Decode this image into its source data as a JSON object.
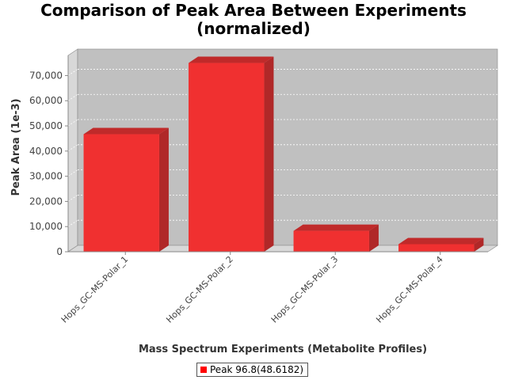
{
  "chart_data": {
    "type": "bar",
    "title": [
      "Comparison of Peak Area Between Experiments",
      "(normalized)"
    ],
    "xlabel": "Mass Spectrum Experiments (Metabolite Profiles)",
    "ylabel": "Peak Area (1e-3)",
    "categories": [
      "Hops_GC-MS-Polar_1",
      "Hops_GC-MS-Polar_2",
      "Hops_GC-MS-Polar_3",
      "Hops_GC-MS-Polar_4"
    ],
    "series": [
      {
        "name": "Peak 96.8(48.6182)",
        "values": [
          46700,
          75000,
          8300,
          3000
        ]
      }
    ],
    "yticks": [
      0,
      10000,
      20000,
      30000,
      40000,
      50000,
      60000,
      70000
    ],
    "yticklabels": [
      "0",
      "10,000",
      "20,000",
      "30,000",
      "40,000",
      "50,000",
      "60,000",
      "70,000"
    ],
    "ylim": [
      0,
      78000
    ],
    "grid": true,
    "legend_position": "bottom-center",
    "colors": {
      "bar_front": "#f03030",
      "bar_side": "#b02828",
      "bar_top": "#c02a2a",
      "plot_background": "#c0c0c0",
      "wall_side": "#d8d8d8",
      "floor": "#d8d8d8",
      "gridline": "#ffffff"
    }
  }
}
